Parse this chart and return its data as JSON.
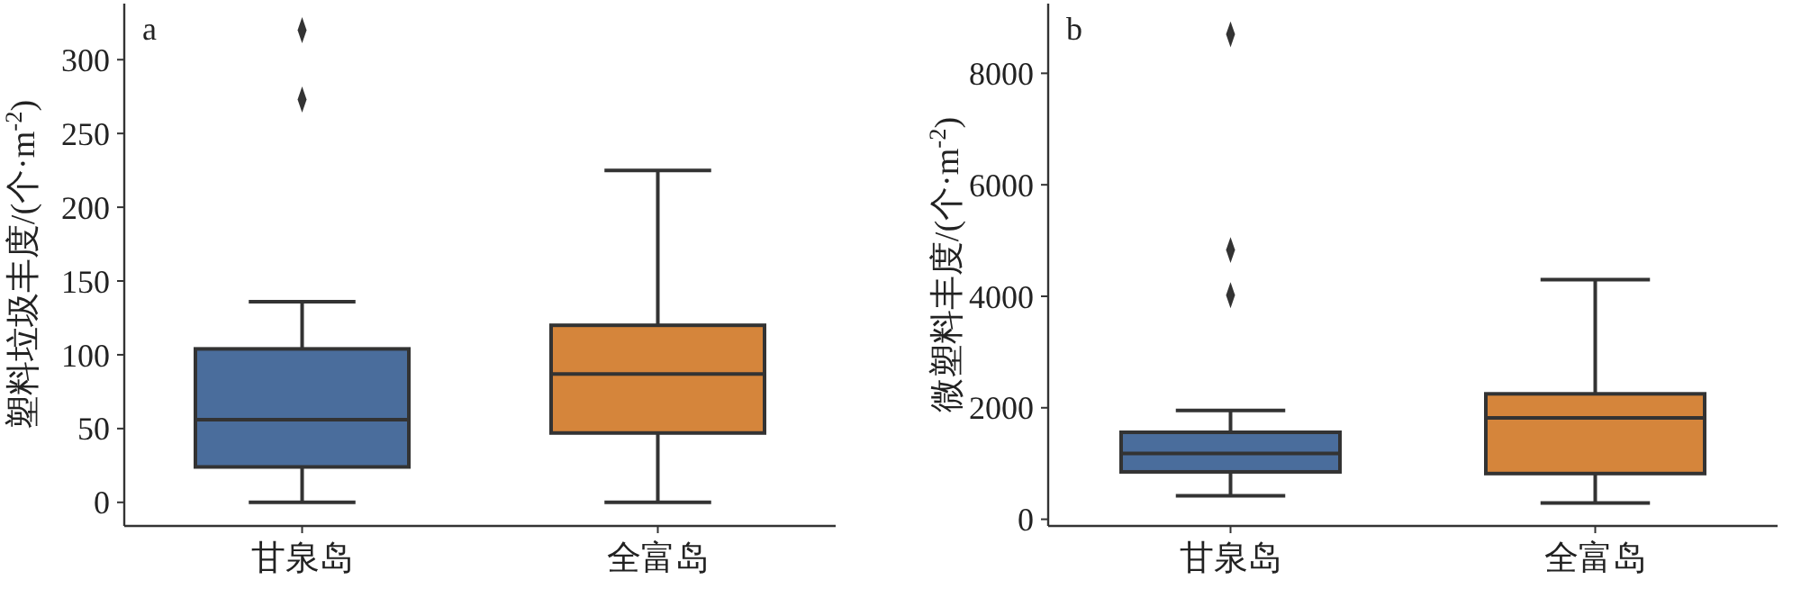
{
  "chart_data": [
    {
      "type": "box",
      "ylabel": "塑料垃圾丰度/(个·m$^{-2}$)",
      "annotations": [
        "a"
      ],
      "categories": [
        "甘泉岛",
        "全富岛"
      ],
      "colors": [
        "#4a6d9c",
        "#d5853b"
      ],
      "marker": "diamond",
      "ylim": [
        -16,
        338
      ],
      "yticks": [
        0,
        50,
        100,
        150,
        200,
        250,
        300
      ],
      "boxes": [
        {
          "low": 0,
          "q1": 24,
          "median": 56,
          "q3": 104,
          "high": 136,
          "outliers": [
            273,
            320
          ]
        },
        {
          "low": 0,
          "q1": 47,
          "median": 87,
          "q3": 120,
          "high": 225
        }
      ]
    },
    {
      "type": "box",
      "ylabel": "微塑料丰度/(个·m$^{-2}$)",
      "annotations": [
        "b"
      ],
      "categories": [
        "甘泉岛",
        "全富岛"
      ],
      "colors": [
        "#4a6d9c",
        "#d5853b"
      ],
      "marker": "diamond",
      "ylim": [
        -120,
        9250
      ],
      "yticks": [
        0,
        2000,
        4000,
        6000,
        8000
      ],
      "boxes": [
        {
          "low": 420,
          "q1": 850,
          "median": 1180,
          "q3": 1560,
          "high": 1950,
          "outliers": [
            4020,
            4830,
            8700
          ]
        },
        {
          "low": 290,
          "q1": 820,
          "median": 1820,
          "q3": 2250,
          "high": 4300
        }
      ]
    }
  ]
}
